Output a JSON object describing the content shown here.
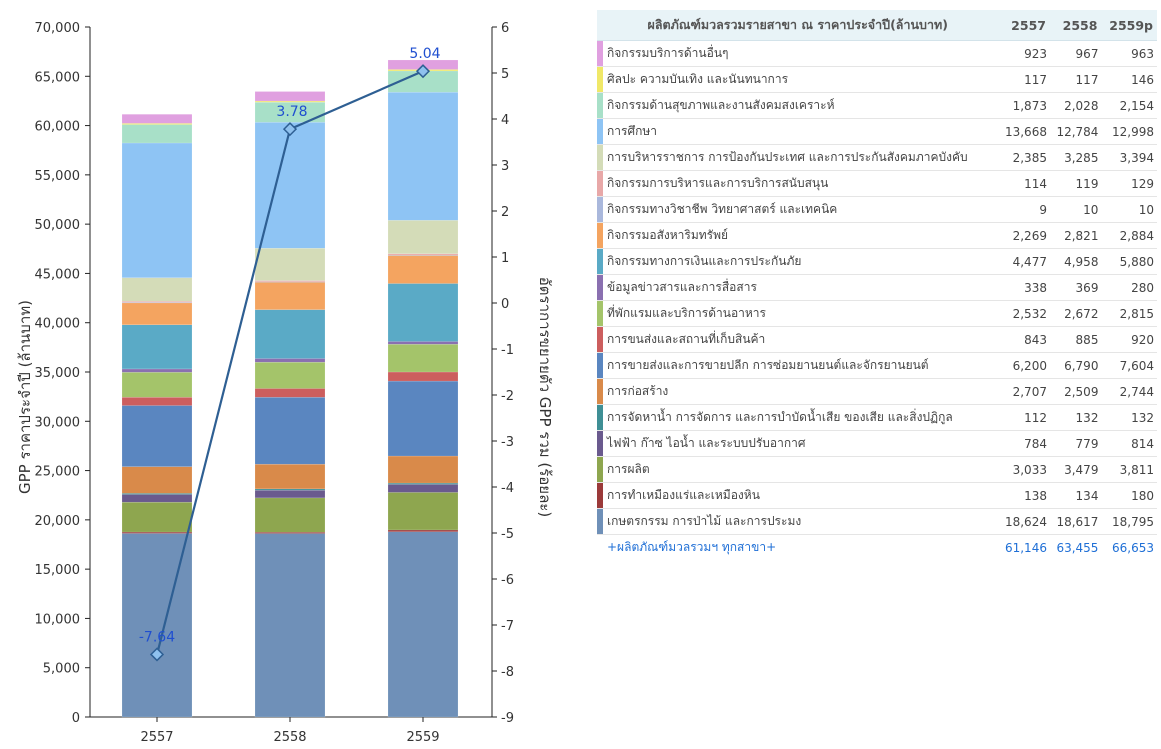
{
  "chart_data": {
    "type": "bar",
    "stacked": true,
    "categories": [
      "2557",
      "2558",
      "2559"
    ],
    "ylabel": "GPP ราคาประจำปี (ล้านบาท)",
    "y2label": "อัตราการขยายตัว GPP รวม (ร้อยละ)",
    "ylim": [
      0,
      70000
    ],
    "y2lim": [
      -9,
      6
    ],
    "yticks": [
      "0",
      "5,000",
      "10,000",
      "15,000",
      "20,000",
      "25,000",
      "30,000",
      "35,000",
      "40,000",
      "45,000",
      "50,000",
      "55,000",
      "60,000",
      "65,000",
      "70,000"
    ],
    "y2ticks": [
      "-9",
      "-8",
      "-7",
      "-6",
      "-5",
      "-4",
      "-3",
      "-2",
      "-1",
      "0",
      "1",
      "2",
      "3",
      "4",
      "5",
      "6"
    ],
    "series": [
      {
        "name": "เกษตรกรรม การป่าไม้ และการประมง",
        "color": "#6f90b8",
        "values": [
          18624,
          18617,
          18795
        ]
      },
      {
        "name": "การทำเหมืองแร่และเหมืองหิน",
        "color": "#9b3a3a",
        "values": [
          138,
          134,
          180
        ]
      },
      {
        "name": "การผลิต",
        "color": "#8ea64f",
        "values": [
          3033,
          3479,
          3811
        ]
      },
      {
        "name": "ไฟฟ้า ก๊าซ ไอน้ำ และระบบปรับอากาศ",
        "color": "#6a5a8e",
        "values": [
          784,
          779,
          814
        ]
      },
      {
        "name": "การจัดหาน้ำ การจัดการ และการบำบัดน้ำเสีย ของเสีย และสิ่งปฏิกูล",
        "color": "#3f8f95",
        "values": [
          112,
          132,
          132
        ]
      },
      {
        "name": "การก่อสร้าง",
        "color": "#d98a4a",
        "values": [
          2707,
          2509,
          2744
        ]
      },
      {
        "name": "การขายส่งและการขายปลีก การซ่อมยานยนต์และจักรยานยนต์",
        "color": "#5a86c0",
        "values": [
          6200,
          6790,
          7604
        ]
      },
      {
        "name": "การขนส่งและสถานที่เก็บสินค้า",
        "color": "#cc5e5e",
        "values": [
          843,
          885,
          920
        ]
      },
      {
        "name": "ที่พักแรมและบริการด้านอาหาร",
        "color": "#a4c46a",
        "values": [
          2532,
          2672,
          2815
        ]
      },
      {
        "name": "ข้อมูลข่าวสารและการสื่อสาร",
        "color": "#8a70b0",
        "values": [
          338,
          369,
          280
        ]
      },
      {
        "name": "กิจกรรมทางการเงินและการประกันภัย",
        "color": "#5aaac6",
        "values": [
          4477,
          4958,
          5880
        ]
      },
      {
        "name": "กิจกรรมอสังหาริมทรัพย์",
        "color": "#f4a460",
        "values": [
          2269,
          2821,
          2884
        ]
      },
      {
        "name": "กิจกรรมทางวิชาชีพ วิทยาศาสตร์ และเทคนิค",
        "color": "#aab8dc",
        "values": [
          9,
          10,
          10
        ]
      },
      {
        "name": "กิจกรรมการบริหารและการบริการสนับสนุน",
        "color": "#e8a8a8",
        "values": [
          114,
          119,
          129
        ]
      },
      {
        "name": "การบริหารราชการ การป้องกันประเทศ และการประกันสังคมภาคบังคับ",
        "color": "#d4dcb8",
        "values": [
          2385,
          3285,
          3394
        ]
      },
      {
        "name": "การศึกษา",
        "color": "#8ec4f4",
        "values": [
          13668,
          12784,
          12998
        ]
      },
      {
        "name": "กิจกรรมด้านสุขภาพและงานสังคมสงเคราะห์",
        "color": "#a8e0c8",
        "values": [
          1873,
          2028,
          2154
        ]
      },
      {
        "name": "ศิลปะ ความบันเทิง และนันทนาการ",
        "color": "#f0e868",
        "values": [
          117,
          117,
          146
        ]
      },
      {
        "name": "กิจกรรมบริการด้านอื่นๆ",
        "color": "#e0a0e0",
        "values": [
          923,
          967,
          963
        ]
      }
    ],
    "growth": {
      "values": [
        -7.64,
        3.78,
        5.04
      ],
      "labels": [
        "-7.64",
        "3.78",
        "5.04"
      ],
      "color": "#2e5f93"
    },
    "grid": false
  },
  "table": {
    "header": {
      "category": "ผลิตภัณฑ์มวลรวมรายสาขา ณ ราคาประจำปี(ล้านบาท)",
      "years": [
        "2557",
        "2558",
        "2559p"
      ]
    },
    "rows": [
      {
        "name": "กิจกรรมบริการด้านอื่นๆ",
        "color": "#e0a0e0",
        "values": [
          "923",
          "967",
          "963"
        ]
      },
      {
        "name": "ศิลปะ ความบันเทิง และนันทนาการ",
        "color": "#f0e868",
        "values": [
          "117",
          "117",
          "146"
        ]
      },
      {
        "name": "กิจกรรมด้านสุขภาพและงานสังคมสงเคราะห์",
        "color": "#a8e0c8",
        "values": [
          "1,873",
          "2,028",
          "2,154"
        ]
      },
      {
        "name": "การศึกษา",
        "color": "#8ec4f4",
        "values": [
          "13,668",
          "12,784",
          "12,998"
        ]
      },
      {
        "name": "การบริหารราชการ การป้องกันประเทศ และการประกันสังคมภาคบังคับ",
        "color": "#d4dcb8",
        "values": [
          "2,385",
          "3,285",
          "3,394"
        ]
      },
      {
        "name": "กิจกรรมการบริหารและการบริการสนับสนุน",
        "color": "#e8a8a8",
        "values": [
          "114",
          "119",
          "129"
        ]
      },
      {
        "name": "กิจกรรมทางวิชาชีพ วิทยาศาสตร์ และเทคนิค",
        "color": "#aab8dc",
        "values": [
          "9",
          "10",
          "10"
        ]
      },
      {
        "name": "กิจกรรมอสังหาริมทรัพย์",
        "color": "#f4a460",
        "values": [
          "2,269",
          "2,821",
          "2,884"
        ]
      },
      {
        "name": "กิจกรรมทางการเงินและการประกันภัย",
        "color": "#5aaac6",
        "values": [
          "4,477",
          "4,958",
          "5,880"
        ]
      },
      {
        "name": "ข้อมูลข่าวสารและการสื่อสาร",
        "color": "#8a70b0",
        "values": [
          "338",
          "369",
          "280"
        ]
      },
      {
        "name": "ที่พักแรมและบริการด้านอาหาร",
        "color": "#a4c46a",
        "values": [
          "2,532",
          "2,672",
          "2,815"
        ]
      },
      {
        "name": "การขนส่งและสถานที่เก็บสินค้า",
        "color": "#cc5e5e",
        "values": [
          "843",
          "885",
          "920"
        ]
      },
      {
        "name": "การขายส่งและการขายปลีก การซ่อมยานยนต์และจักรยานยนต์",
        "color": "#5a86c0",
        "values": [
          "6,200",
          "6,790",
          "7,604"
        ]
      },
      {
        "name": "การก่อสร้าง",
        "color": "#d98a4a",
        "values": [
          "2,707",
          "2,509",
          "2,744"
        ]
      },
      {
        "name": "การจัดหาน้ำ การจัดการ และการบำบัดน้ำเสีย ของเสีย และสิ่งปฏิกูล",
        "color": "#3f8f95",
        "values": [
          "112",
          "132",
          "132"
        ]
      },
      {
        "name": "ไฟฟ้า ก๊าซ ไอน้ำ และระบบปรับอากาศ",
        "color": "#6a5a8e",
        "values": [
          "784",
          "779",
          "814"
        ]
      },
      {
        "name": "การผลิต",
        "color": "#8ea64f",
        "values": [
          "3,033",
          "3,479",
          "3,811"
        ]
      },
      {
        "name": "การทำเหมืองแร่และเหมืองหิน",
        "color": "#9b3a3a",
        "values": [
          "138",
          "134",
          "180"
        ]
      },
      {
        "name": "เกษตรกรรม การป่าไม้ และการประมง",
        "color": "#6f90b8",
        "values": [
          "18,624",
          "18,617",
          "18,795"
        ]
      }
    ],
    "total": {
      "name": "+ผลิตภัณฑ์มวลรวมฯ ทุกสาขา+",
      "values": [
        "61,146",
        "63,455",
        "66,653"
      ]
    }
  }
}
